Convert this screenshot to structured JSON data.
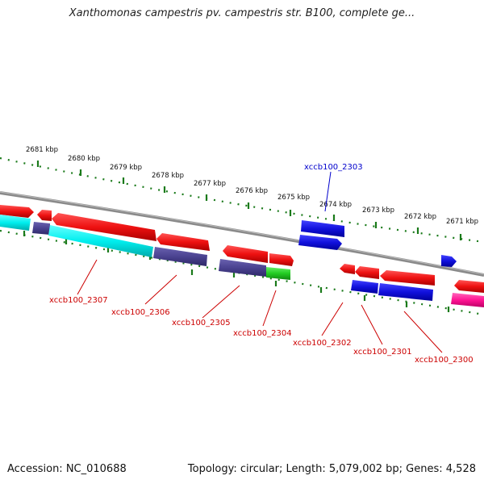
{
  "title": "Xanthomonas campestris pv. campestris str. B100, complete ge...",
  "footer": {
    "accession": "Accession: NC_010688",
    "summary": "Topology: circular; Length: 5,079,002 bp; Genes: 4,528"
  },
  "colors": {
    "backbone": "#888888",
    "tick": "#1a7a1a",
    "red_gene": "#ee1111",
    "blue_gene": "#1111dd",
    "cyan_gene": "#00eeee",
    "slate_gene": "#4a4290",
    "green_gene": "#22cc22",
    "pink_gene": "#ff1493",
    "label_red": "#cc0000",
    "label_blue": "#0000cc"
  },
  "kbp_labels": [
    "2681 kbp",
    "2680 kbp",
    "2679 kbp",
    "2678 kbp",
    "2677 kbp",
    "2676 kbp",
    "2675 kbp",
    "2674 kbp",
    "2673 kbp",
    "2672 kbp",
    "2671 kbp"
  ],
  "gene_labels": [
    {
      "text": "xccb100_2303",
      "color": "blue"
    },
    {
      "text": "xccb100_2307",
      "color": "red"
    },
    {
      "text": "xccb100_2306",
      "color": "red"
    },
    {
      "text": "xccb100_2305",
      "color": "red"
    },
    {
      "text": "xccb100_2304",
      "color": "red"
    },
    {
      "text": "xccb100_2302",
      "color": "red"
    },
    {
      "text": "xccb100_2301",
      "color": "red"
    },
    {
      "text": "xccb100_2300",
      "color": "red"
    }
  ]
}
